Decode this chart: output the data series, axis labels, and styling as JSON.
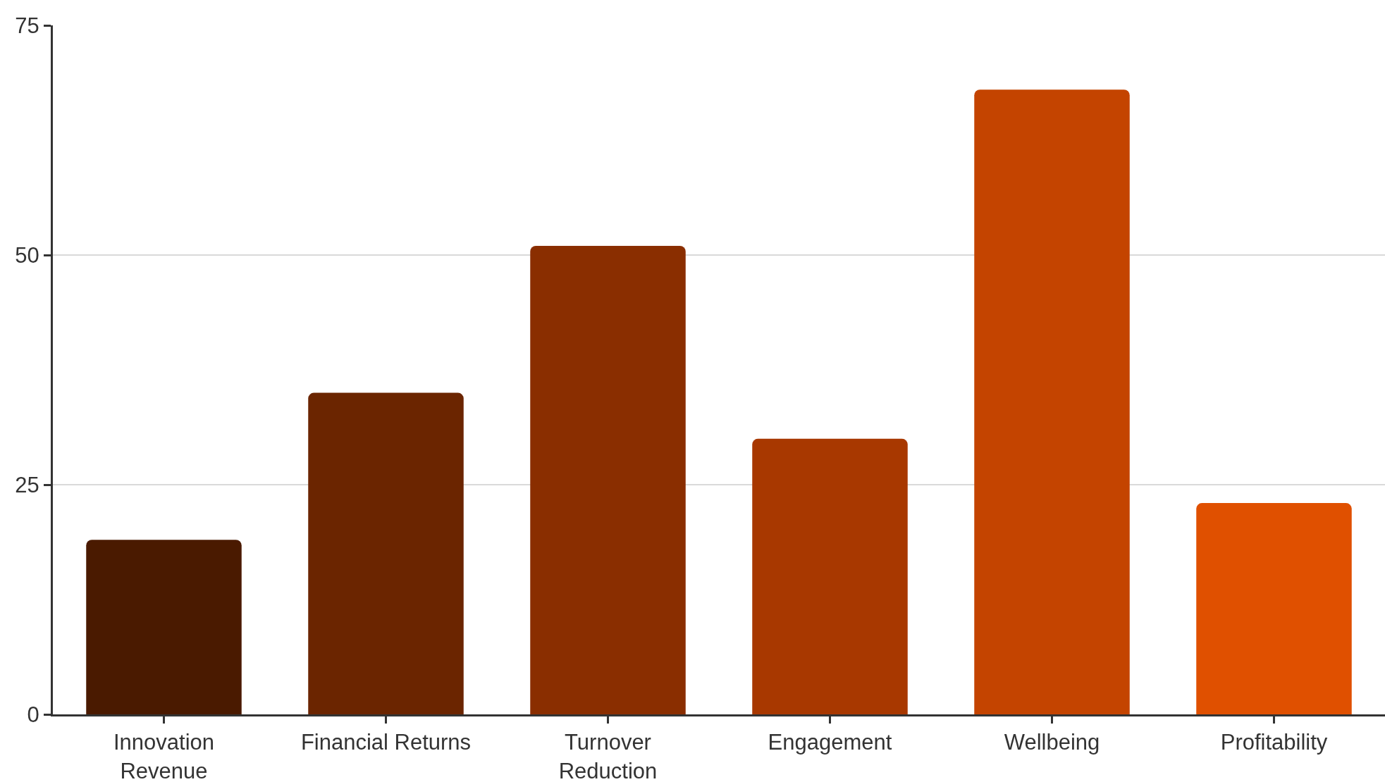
{
  "chart_data": {
    "type": "bar",
    "categories": [
      "Innovation Revenue",
      "Financial Returns",
      "Turnover Reduction",
      "Engagement",
      "Wellbeing",
      "Profitability"
    ],
    "values": [
      19,
      35,
      51,
      30,
      68,
      23
    ],
    "colors": [
      "#4a1a00",
      "#6b2500",
      "#8a2e00",
      "#a83800",
      "#c44400",
      "#e05000"
    ],
    "ylim": [
      0,
      75
    ],
    "yticks": [
      0,
      25,
      50,
      75
    ],
    "grid": "y"
  }
}
